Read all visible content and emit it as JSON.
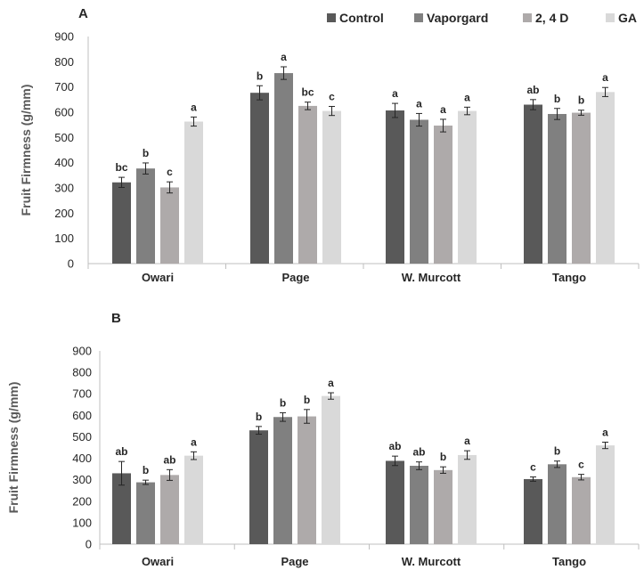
{
  "legend": {
    "items": [
      {
        "name": "Control",
        "color": "#595959"
      },
      {
        "name": "Vaporgard",
        "color": "#808080"
      },
      {
        "name": "2, 4 D",
        "color": "#aeaaaa"
      },
      {
        "name": "GA",
        "color": "#d9d9d9"
      }
    ]
  },
  "chart_data": [
    {
      "type": "bar",
      "panel": "A",
      "ylabel": "Fruit Firmness (g/mm)",
      "xlabel": "",
      "ylim": [
        0,
        900
      ],
      "ytick_step": 100,
      "categories": [
        "Owari",
        "Page",
        "W. Murcott",
        "Tango"
      ],
      "series": [
        {
          "name": "Control",
          "values": [
            322,
            677,
            607,
            630
          ],
          "errors": [
            20,
            28,
            28,
            20
          ],
          "labels": [
            "bc",
            "b",
            "a",
            "ab"
          ]
        },
        {
          "name": "Vaporgard",
          "values": [
            377,
            755,
            570,
            593
          ],
          "errors": [
            22,
            25,
            25,
            22
          ],
          "labels": [
            "b",
            "a",
            "a",
            "b"
          ]
        },
        {
          "name": "2, 4 D",
          "values": [
            302,
            625,
            547,
            598
          ],
          "errors": [
            22,
            15,
            25,
            10
          ],
          "labels": [
            "c",
            "bc",
            "a",
            "b"
          ]
        },
        {
          "name": "GA",
          "values": [
            563,
            605,
            605,
            680
          ],
          "errors": [
            18,
            18,
            15,
            18
          ],
          "labels": [
            "a",
            "c",
            "a",
            "a"
          ]
        }
      ]
    },
    {
      "type": "bar",
      "panel": "B",
      "ylabel": "Fruit Firmness (g/mm)",
      "xlabel": "",
      "ylim": [
        0,
        900
      ],
      "ytick_step": 100,
      "categories": [
        "Owari",
        "Page",
        "W. Murcott",
        "Tango"
      ],
      "series": [
        {
          "name": "Control",
          "values": [
            330,
            530,
            388,
            303
          ],
          "errors": [
            55,
            18,
            22,
            10
          ],
          "labels": [
            "ab",
            "b",
            "ab",
            "c"
          ]
        },
        {
          "name": "Vaporgard",
          "values": [
            288,
            592,
            365,
            372
          ],
          "errors": [
            10,
            20,
            18,
            15
          ],
          "labels": [
            "b",
            "b",
            "ab",
            "b"
          ]
        },
        {
          "name": "2, 4 D",
          "values": [
            322,
            595,
            345,
            312
          ],
          "errors": [
            25,
            32,
            15,
            13
          ],
          "labels": [
            "ab",
            "b",
            "b",
            "c"
          ]
        },
        {
          "name": "GA",
          "values": [
            412,
            690,
            415,
            460
          ],
          "errors": [
            18,
            15,
            20,
            15
          ],
          "labels": [
            "a",
            "a",
            "a",
            "a"
          ]
        }
      ]
    }
  ]
}
